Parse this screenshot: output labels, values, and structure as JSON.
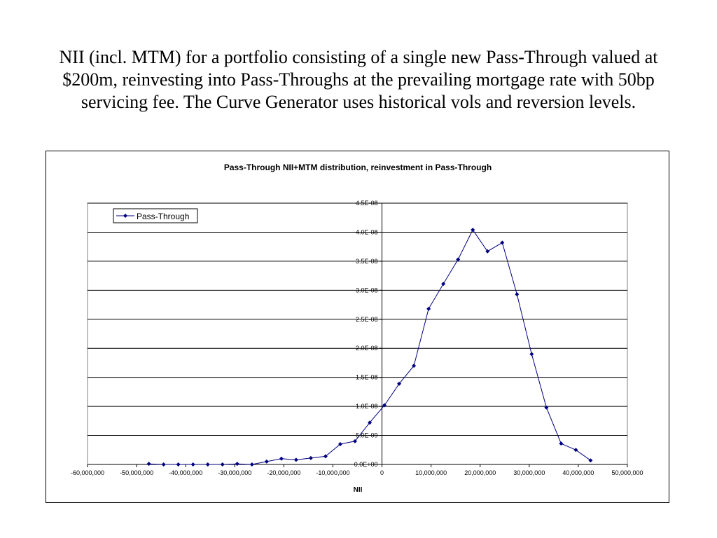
{
  "slide": {
    "title": "NII (incl. MTM) for a portfolio consisting of a single new Pass-Through valued at $200m, reinvesting into Pass-Throughs at the prevailing mortgage rate with 50bp servicing fee. The Curve Generator uses historical vols and reversion levels."
  },
  "colors": {
    "series": "#000080",
    "grid": "#000000",
    "plot_border": "#808080"
  },
  "chart_data": {
    "type": "line",
    "title": "Pass-Through NII+MTM distribution, reinvestment in Pass-Through",
    "xlabel": "NII",
    "ylabel": "",
    "xlim": [
      -60000000,
      50000000
    ],
    "ylim": [
      0,
      4.5e-08
    ],
    "grid": "horizontal",
    "legend_position": "top-left",
    "x_tick_values": [
      -60000000,
      -50000000,
      -40000000,
      -30000000,
      -20000000,
      -10000000,
      0,
      10000000,
      20000000,
      30000000,
      40000000,
      50000000
    ],
    "x_tick_labels": [
      "-60,000,000",
      "-50,000,000",
      "-40,000,000",
      "-30,000,000",
      "-20,000,000",
      "-10,000,000",
      "0",
      "10,000,000",
      "20,000,000",
      "30,000,000",
      "40,000,000",
      "50,000,000"
    ],
    "y_tick_values": [
      0,
      5e-09,
      1e-08,
      1.5e-08,
      2e-08,
      2.5e-08,
      3e-08,
      3.5e-08,
      4e-08,
      4.5e-08
    ],
    "y_tick_labels": [
      "0.0E+00",
      "5.0E-09",
      "1.0E-08",
      "1.5E-08",
      "2.0E-08",
      "2.5E-08",
      "3.0E-08",
      "3.5E-08",
      "4.0E-08",
      "4.5E-08"
    ],
    "series": [
      {
        "name": "Pass-Through",
        "x": [
          -47500000,
          -44500000,
          -41500000,
          -38500000,
          -35500000,
          -32500000,
          -29500000,
          -26500000,
          -23500000,
          -20500000,
          -17500000,
          -14500000,
          -11500000,
          -8500000,
          -5500000,
          -2500000,
          500000,
          3500000,
          6500000,
          9500000,
          12500000,
          15500000,
          18500000,
          21500000,
          24500000,
          27500000,
          30500000,
          33500000,
          36500000,
          39500000,
          42500000
        ],
        "y": [
          1e-10,
          0,
          0,
          0,
          0,
          0,
          1e-10,
          0,
          5e-10,
          1e-09,
          8e-10,
          1.1e-09,
          1.4e-09,
          3.5e-09,
          4e-09,
          7.2e-09,
          1.02e-08,
          1.39e-08,
          1.7e-08,
          2.68e-08,
          3.11e-08,
          3.53e-08,
          4.04e-08,
          3.67e-08,
          3.82e-08,
          2.93e-08,
          1.9e-08,
          9.8e-09,
          3.6e-09,
          2.5e-09,
          7e-10
        ]
      }
    ]
  }
}
